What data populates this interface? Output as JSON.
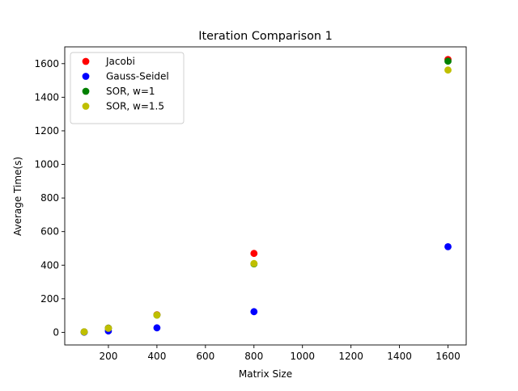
{
  "chart_data": {
    "type": "scatter",
    "title": "Iteration Comparison 1",
    "xlabel": "Matrix Size",
    "ylabel": "Average Time(s)",
    "xlim": [
      20,
      1675
    ],
    "ylim": [
      -75,
      1700
    ],
    "xticks": [
      200,
      400,
      600,
      800,
      1000,
      1200,
      1400,
      1600
    ],
    "yticks": [
      0,
      200,
      400,
      600,
      800,
      1000,
      1200,
      1400,
      1600
    ],
    "grid": false,
    "legend_position": "upper left",
    "series": [
      {
        "name": "Jacobi",
        "color": "#ff0000",
        "x": [
          100,
          200,
          400,
          800,
          1600
        ],
        "y": [
          3,
          25,
          105,
          470,
          1625
        ]
      },
      {
        "name": "Gauss-Seidel",
        "color": "#0000ff",
        "x": [
          100,
          200,
          400,
          800,
          1600
        ],
        "y": [
          1,
          8,
          27,
          123,
          510
        ]
      },
      {
        "name": "SOR, w=1",
        "color": "#008000",
        "x": [
          100,
          200,
          400,
          800,
          1600
        ],
        "y": [
          3,
          25,
          103,
          408,
          1615
        ]
      },
      {
        "name": "SOR, w=1.5",
        "color": "#bfbf00",
        "x": [
          100,
          200,
          400,
          800,
          1600
        ],
        "y": [
          3,
          24,
          103,
          410,
          1562
        ]
      }
    ]
  }
}
